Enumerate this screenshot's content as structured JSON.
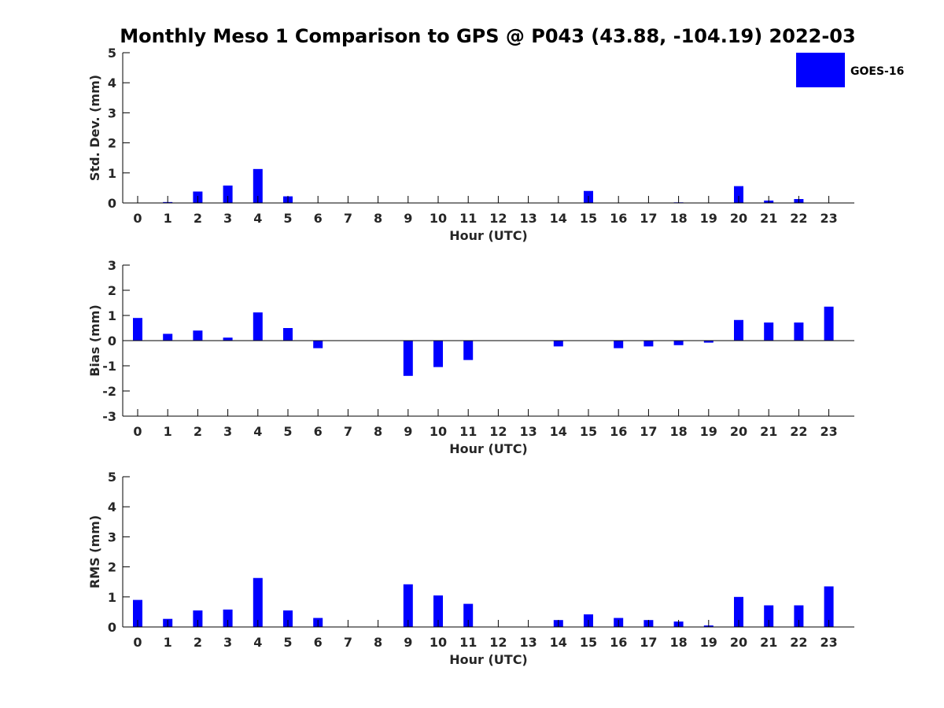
{
  "chart_data": {
    "title": "Monthly Meso 1 Comparison to GPS @ P043 (43.88, -104.19) 2022-03",
    "legend": {
      "label": "GOES-16",
      "position": "top-right",
      "color": "#0000ff"
    },
    "bar_color": "#0000ff",
    "type": "bar",
    "panels": [
      {
        "type": "bar",
        "ylabel": "Std. Dev. (mm)",
        "xlabel": "Hour (UTC)",
        "ylim": [
          0,
          5
        ],
        "yticks": [
          0,
          1,
          2,
          3,
          4,
          5
        ],
        "categories": [
          0,
          1,
          2,
          3,
          4,
          5,
          6,
          7,
          8,
          9,
          10,
          11,
          12,
          13,
          14,
          15,
          16,
          17,
          18,
          19,
          20,
          21,
          22,
          23
        ],
        "values": [
          null,
          0.03,
          0.38,
          0.58,
          1.13,
          0.22,
          null,
          null,
          null,
          null,
          null,
          null,
          null,
          null,
          null,
          0.4,
          null,
          null,
          0.02,
          null,
          0.56,
          0.08,
          0.13,
          null
        ],
        "series": [
          {
            "name": "GOES-16",
            "values": [
              null,
              0.03,
              0.38,
              0.58,
              1.13,
              0.22,
              null,
              null,
              null,
              null,
              null,
              null,
              null,
              null,
              null,
              0.4,
              null,
              null,
              0.02,
              null,
              0.56,
              0.08,
              0.13,
              null
            ]
          }
        ]
      },
      {
        "type": "bar",
        "ylabel": "Bias (mm)",
        "xlabel": "Hour (UTC)",
        "ylim": [
          -3,
          3
        ],
        "yticks": [
          -3,
          -2,
          -1,
          0,
          1,
          2,
          3
        ],
        "categories": [
          0,
          1,
          2,
          3,
          4,
          5,
          6,
          7,
          8,
          9,
          10,
          11,
          12,
          13,
          14,
          15,
          16,
          17,
          18,
          19,
          20,
          21,
          22,
          23
        ],
        "values": [
          0.9,
          0.27,
          0.4,
          0.12,
          1.12,
          0.5,
          -0.3,
          null,
          null,
          -1.4,
          -1.05,
          -0.77,
          null,
          null,
          -0.23,
          null,
          -0.3,
          -0.23,
          -0.18,
          -0.08,
          0.82,
          0.72,
          0.72,
          1.35
        ],
        "series": [
          {
            "name": "GOES-16",
            "values": [
              0.9,
              0.27,
              0.4,
              0.12,
              1.12,
              0.5,
              -0.3,
              null,
              null,
              -1.4,
              -1.05,
              -0.77,
              null,
              null,
              -0.23,
              null,
              -0.3,
              -0.23,
              -0.18,
              -0.08,
              0.82,
              0.72,
              0.72,
              1.35
            ]
          }
        ]
      },
      {
        "type": "bar",
        "ylabel": "RMS (mm)",
        "xlabel": "Hour (UTC)",
        "ylim": [
          0,
          5
        ],
        "yticks": [
          0,
          1,
          2,
          3,
          4,
          5
        ],
        "categories": [
          0,
          1,
          2,
          3,
          4,
          5,
          6,
          7,
          8,
          9,
          10,
          11,
          12,
          13,
          14,
          15,
          16,
          17,
          18,
          19,
          20,
          21,
          22,
          23
        ],
        "values": [
          0.9,
          0.27,
          0.55,
          0.58,
          1.63,
          0.55,
          0.3,
          null,
          null,
          1.42,
          1.05,
          0.77,
          null,
          null,
          0.23,
          0.42,
          0.3,
          0.23,
          0.18,
          0.05,
          1.0,
          0.72,
          0.72,
          1.35
        ],
        "series": [
          {
            "name": "GOES-16",
            "values": [
              0.9,
              0.27,
              0.55,
              0.58,
              1.63,
              0.55,
              0.3,
              null,
              null,
              1.42,
              1.05,
              0.77,
              null,
              null,
              0.23,
              0.42,
              0.3,
              0.23,
              0.18,
              0.05,
              1.0,
              0.72,
              0.72,
              1.35
            ]
          }
        ]
      }
    ]
  }
}
